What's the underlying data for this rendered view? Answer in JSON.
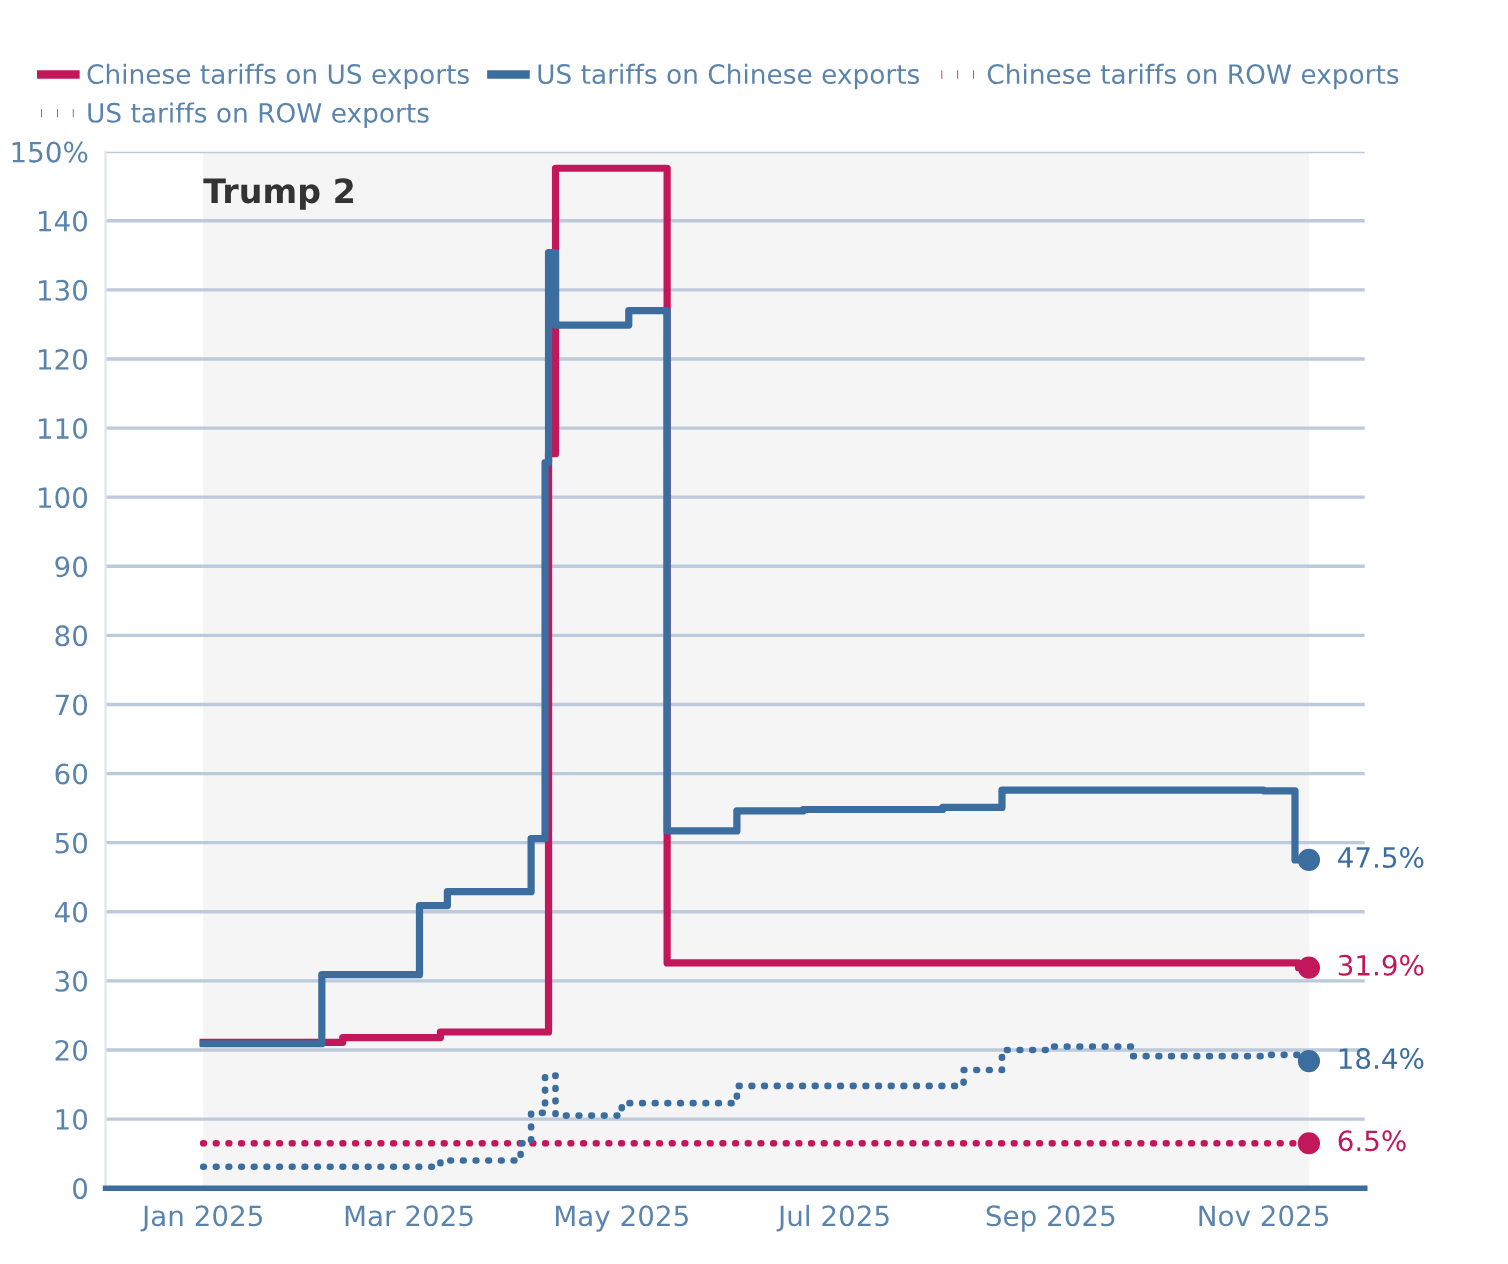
{
  "chart_data": {
    "type": "step",
    "series": [
      {
        "name": "Chinese tariffs on US exports",
        "color": "#c2185b",
        "line_style": "solid",
        "x": [
          "2025-01-01",
          "2025-02-10",
          "2025-03-10",
          "2025-04-10",
          "2025-04-12",
          "2025-05-14",
          "2025-11-11",
          "2025-11-14"
        ],
        "values": [
          21.1,
          21.8,
          22.6,
          106.3,
          147.6,
          32.6,
          31.9,
          31.9
        ],
        "value_labels": [
          null,
          null,
          null,
          null,
          null,
          null,
          null,
          "31.9%"
        ]
      },
      {
        "name": "US tariffs on Chinese exports",
        "color": "#3b6e9e",
        "line_style": "solid",
        "x": [
          "2025-01-01",
          "2025-02-04",
          "2025-03-04",
          "2025-03-12",
          "2025-04-05",
          "2025-04-09",
          "2025-04-10",
          "2025-04-12",
          "2025-05-03",
          "2025-05-14",
          "2025-06-03",
          "2025-06-22",
          "2025-08-01",
          "2025-08-18",
          "2025-11-01",
          "2025-11-10",
          "2025-11-14"
        ],
        "values": [
          20.9,
          30.9,
          40.9,
          42.9,
          50.6,
          105.0,
          135.4,
          124.9,
          127.0,
          51.7,
          54.6,
          54.8,
          55.1,
          57.6,
          57.5,
          47.5,
          47.5
        ],
        "value_labels": [
          null,
          null,
          null,
          null,
          null,
          null,
          null,
          null,
          null,
          null,
          null,
          null,
          null,
          null,
          null,
          null,
          "47.5%"
        ]
      },
      {
        "name": "Chinese tariffs on ROW exports",
        "color": "#c2185b",
        "line_style": "dotted",
        "x": [
          "2025-01-01",
          "2025-11-14"
        ],
        "values": [
          6.5,
          6.5
        ],
        "value_labels": [
          null,
          "6.5%"
        ]
      },
      {
        "name": "US tariffs on ROW exports",
        "color": "#3b6e9e",
        "line_style": "dotted",
        "x": [
          "2025-01-01",
          "2025-03-10",
          "2025-04-02",
          "2025-04-05",
          "2025-04-09",
          "2025-04-12",
          "2025-05-01",
          "2025-06-03",
          "2025-08-07",
          "2025-08-18",
          "2025-09-01",
          "2025-09-24",
          "2025-11-01",
          "2025-11-14"
        ],
        "values": [
          3.1,
          4.0,
          6.5,
          10.9,
          16.3,
          10.5,
          12.3,
          14.8,
          17.1,
          20.0,
          20.5,
          19.1,
          19.3,
          18.4
        ],
        "value_labels": [
          null,
          null,
          null,
          null,
          null,
          null,
          null,
          null,
          null,
          null,
          null,
          null,
          null,
          "18.4%"
        ]
      }
    ],
    "xlim": [
      "2024-12-04",
      "2025-11-30"
    ],
    "xticks": [
      {
        "value": "2025-01-01",
        "label": "Jan 2025"
      },
      {
        "value": "2025-03-01",
        "label": "Mar 2025"
      },
      {
        "value": "2025-05-01",
        "label": "May 2025"
      },
      {
        "value": "2025-07-01",
        "label": "Jul 2025"
      },
      {
        "value": "2025-09-01",
        "label": "Sep 2025"
      },
      {
        "value": "2025-11-01",
        "label": "Nov 2025"
      }
    ],
    "ylim": [
      0,
      150
    ],
    "yticks": [
      0,
      10,
      20,
      30,
      40,
      50,
      60,
      70,
      80,
      90,
      100,
      110,
      120,
      130,
      140,
      {
        "value": 150,
        "label": "150%"
      }
    ],
    "bands": [
      {
        "axis": "x",
        "from": "2025-01-01",
        "to": "2025-11-14",
        "label": "Trump 2",
        "color": "#f5f5f5"
      }
    ],
    "grid": "y",
    "legend": "top"
  }
}
